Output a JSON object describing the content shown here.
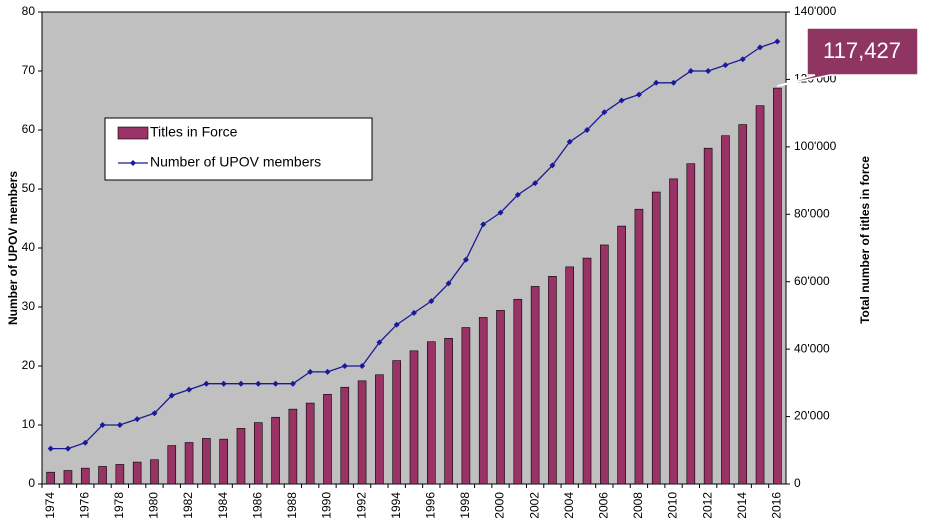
{
  "chart_data": {
    "type": "bar_line",
    "categories": [
      "1974",
      null,
      "1976",
      null,
      "1978",
      null,
      "1980",
      null,
      "1982",
      null,
      "1984",
      null,
      "1986",
      null,
      "1988",
      null,
      "1990",
      null,
      "1992",
      null,
      "1994",
      null,
      "1996",
      null,
      "1998",
      null,
      "2000",
      null,
      "2002",
      null,
      "2004",
      null,
      "2006",
      null,
      "2008",
      null,
      "2010",
      null,
      "2012",
      null,
      "2014",
      null,
      "2016"
    ],
    "series": [
      {
        "name": "Titles in Force",
        "type": "bar",
        "axis": "y2",
        "color": "#993366",
        "values": [
          3500,
          4000,
          4700,
          5200,
          5800,
          6500,
          7200,
          11400,
          12300,
          13500,
          13300,
          16500,
          18200,
          19800,
          22200,
          24000,
          26600,
          28700,
          30600,
          32400,
          36600,
          39500,
          42200,
          43200,
          46400,
          49400,
          51500,
          54800,
          58600,
          61600,
          64400,
          67000,
          70900,
          76500,
          81500,
          86600,
          90500,
          95000,
          99600,
          103300,
          106600,
          112200,
          117427
        ],
        "value_labels": [
          null,
          null,
          null,
          null,
          null,
          null,
          null,
          null,
          null,
          null,
          null,
          null,
          null,
          null,
          null,
          null,
          null,
          null,
          null,
          null,
          null,
          null,
          null,
          null,
          null,
          null,
          null,
          null,
          null,
          null,
          null,
          null,
          null,
          null,
          null,
          null,
          null,
          null,
          null,
          null,
          null,
          null,
          "117,427"
        ]
      },
      {
        "name": "Number of UPOV members",
        "type": "line",
        "axis": "y",
        "color": "#1a1a99",
        "values": [
          6,
          6,
          7,
          10,
          10,
          11,
          12,
          15,
          16,
          17,
          17,
          17,
          17,
          17,
          17,
          19,
          19,
          20,
          20,
          24,
          27,
          29,
          31,
          34,
          38,
          44,
          46,
          49,
          51,
          54,
          58,
          60,
          63,
          65,
          66,
          68,
          68,
          70,
          70,
          71,
          72,
          74,
          75
        ]
      }
    ],
    "y_label": "Number of UPOV members",
    "y2_label": "Total number of titles in force",
    "ylim": [
      0,
      80
    ],
    "yticks": [
      0,
      10,
      20,
      30,
      40,
      50,
      60,
      70,
      80
    ],
    "y2lim": [
      0,
      140000
    ],
    "y2ticks": [
      0,
      {
        "value": 20000,
        "label": "20'000"
      },
      {
        "value": 40000,
        "label": "40'000"
      },
      {
        "value": 60000,
        "label": "60'000"
      },
      {
        "value": 80000,
        "label": "80'000"
      },
      {
        "value": 100000,
        "label": "100'000"
      },
      {
        "value": 120000,
        "label": "120'000"
      },
      {
        "value": 140000,
        "label": "140'000"
      }
    ],
    "legend": "upper-left",
    "plot_background": "#c0c0c0"
  }
}
